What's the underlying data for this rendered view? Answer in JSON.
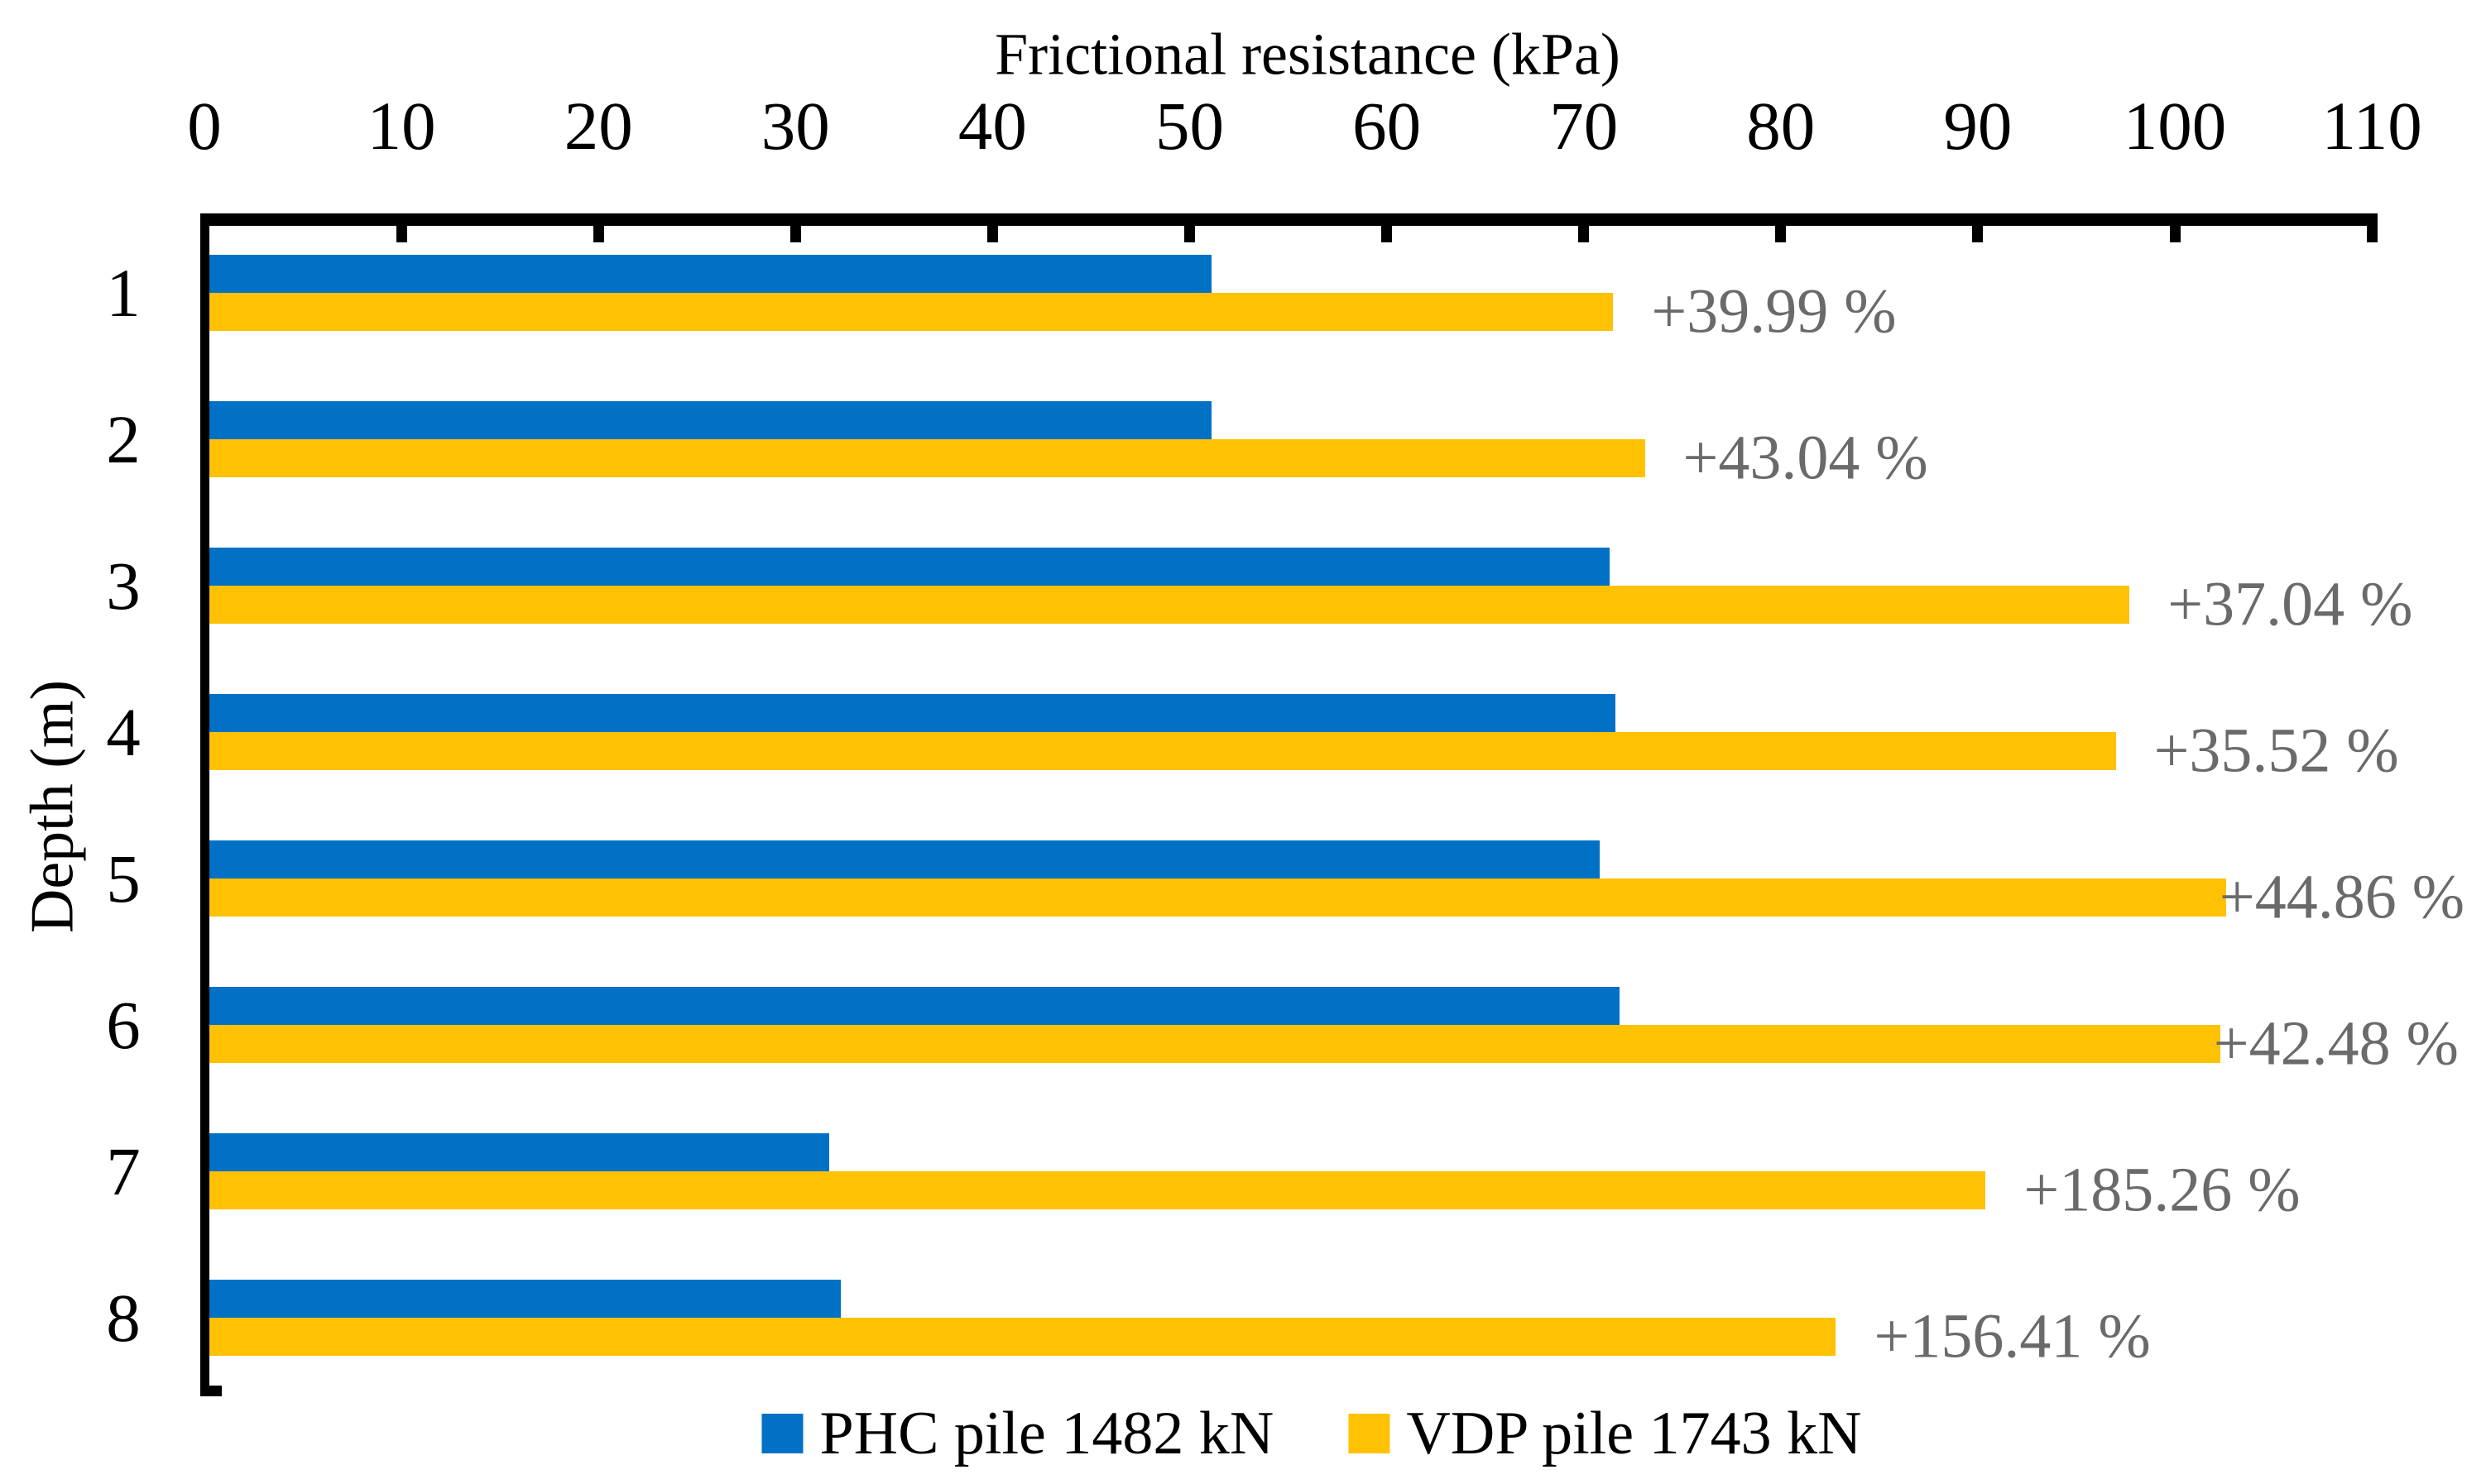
{
  "chart_data": {
    "type": "bar",
    "orientation": "horizontal",
    "title": "Frictional resistance (kPa)",
    "xlabel": "Frictional resistance (kPa)",
    "ylabel": "Depth (m)",
    "xlim": [
      0,
      110
    ],
    "x_ticks": [
      0,
      10,
      20,
      30,
      40,
      50,
      60,
      70,
      80,
      90,
      100,
      110
    ],
    "grid": "off",
    "legend_position": "bottom",
    "categories": [
      "1",
      "2",
      "3",
      "4",
      "5",
      "6",
      "7",
      "8"
    ],
    "series": [
      {
        "name": "PHC pile 1482 kN",
        "color": "#0171C6",
        "values": [
          51.1,
          51.1,
          71.3,
          71.6,
          70.8,
          71.8,
          31.7,
          32.3
        ]
      },
      {
        "name": "VDP pile 1743 kN",
        "color": "#FFC103",
        "values": [
          71.5,
          73.1,
          97.7,
          97.0,
          102.6,
          102.3,
          90.4,
          82.8
        ]
      }
    ],
    "annotations": [
      "+39.99 %",
      "+43.04 %",
      "+37.04 %",
      "+35.52 %",
      "+44.86 %",
      "+42.48 %",
      "+185.26 %",
      "+156.41 %"
    ],
    "annotation_color": "#6a6a6a",
    "axis_color": "#000000"
  },
  "legend": [
    {
      "label": "PHC pile 1482 kN",
      "color": "#0171C6"
    },
    {
      "label": "VDP pile 1743 kN",
      "color": "#FFC103"
    }
  ]
}
